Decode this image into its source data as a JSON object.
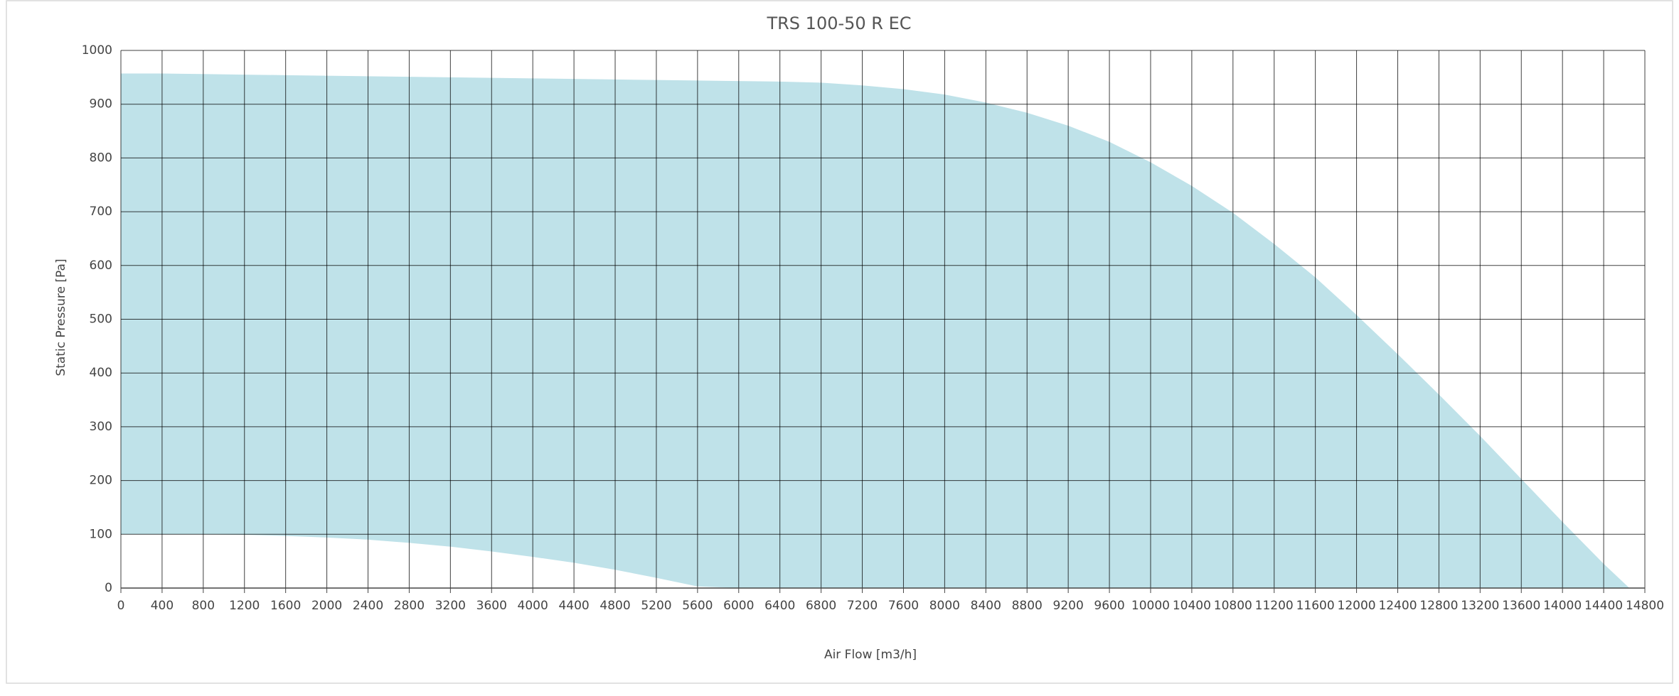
{
  "chart_data": {
    "type": "range-area",
    "title": "TRS 100-50 R EC",
    "x_label": "Air Flow [m3/h]",
    "y_label": "Static Pressure [Pa]",
    "color": "#bfe2e9",
    "grid": true,
    "x": [
      0,
      400,
      800,
      1200,
      1600,
      2000,
      2400,
      2800,
      3200,
      3600,
      4000,
      4400,
      4800,
      5200,
      5600,
      6000,
      6400,
      6800,
      7200,
      7600,
      8000,
      8400,
      8800,
      9200,
      9600,
      10000,
      10400,
      10800,
      11200,
      11600,
      12000,
      12400,
      12800,
      13200,
      13600,
      14000,
      14400,
      14650
    ],
    "upper": [
      957,
      957,
      956,
      955,
      954,
      953,
      952,
      951,
      950,
      949,
      948,
      947,
      946,
      945,
      944,
      943,
      942,
      940,
      935,
      928,
      918,
      903,
      884,
      860,
      830,
      792,
      748,
      698,
      640,
      578,
      508,
      435,
      360,
      283,
      203,
      123,
      45,
      0
    ],
    "lower": [
      100,
      100,
      100,
      99,
      97,
      94,
      90,
      84,
      77,
      68,
      58,
      47,
      34,
      19,
      3,
      0,
      0,
      0,
      0,
      0,
      0,
      0,
      0,
      0,
      0,
      0,
      0,
      0,
      0,
      0,
      0,
      0,
      0,
      0,
      0,
      0,
      0,
      0
    ],
    "xlim": [
      0,
      14800
    ],
    "ylim": [
      0,
      1000
    ],
    "xticks": [
      0,
      400,
      800,
      1200,
      1600,
      2000,
      2400,
      2800,
      3200,
      3600,
      4000,
      4400,
      4800,
      5200,
      5600,
      6000,
      6400,
      6800,
      7200,
      7600,
      8000,
      8400,
      8800,
      9200,
      9600,
      10000,
      10400,
      10800,
      11200,
      11600,
      12000,
      12400,
      12800,
      13200,
      13600,
      14000,
      14400,
      14800
    ],
    "yticks": [
      0,
      100,
      200,
      300,
      400,
      500,
      600,
      700,
      800,
      900,
      1000
    ]
  }
}
